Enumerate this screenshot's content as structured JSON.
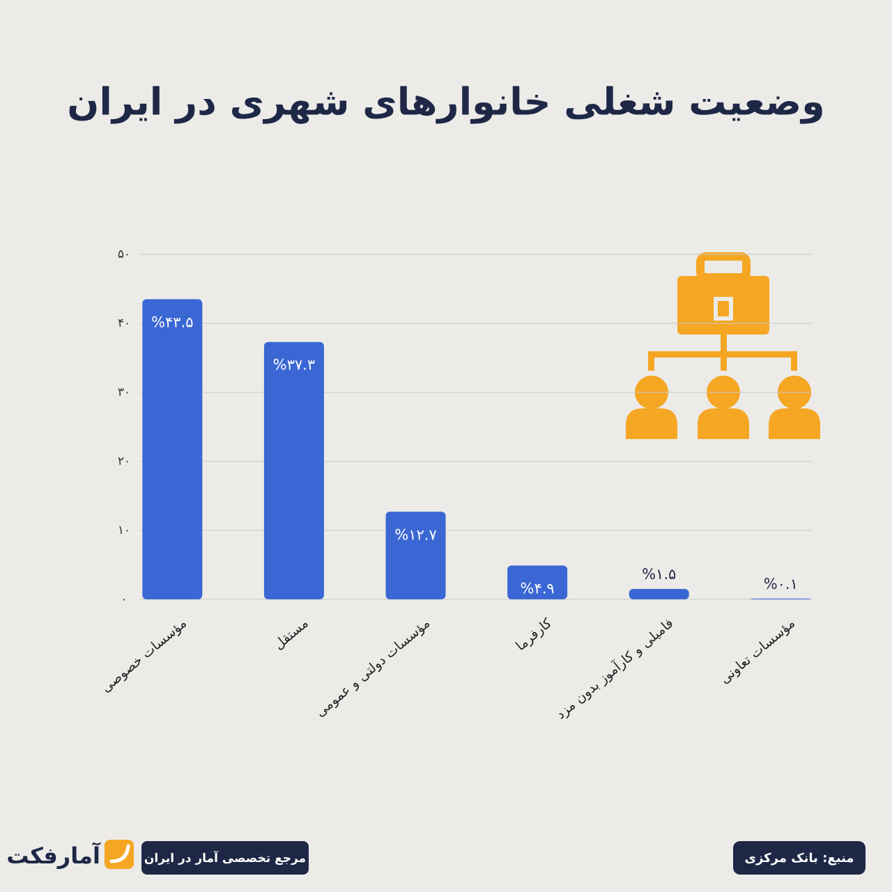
{
  "chart_data": {
    "type": "bar",
    "title": "وضعیت شغلی خانوارهای شهری در ایران",
    "categories": [
      "مؤسسات خصوصی",
      "مستقل",
      "مؤسسات دولتی و عمومی",
      "کارفرما",
      "فامیلی و کارآموز بدون مزد",
      "مؤسسات تعاونی"
    ],
    "values": [
      43.5,
      37.3,
      12.7,
      4.9,
      1.5,
      0.1
    ],
    "value_labels": [
      "%۴۳.۵",
      "%۳۷.۳",
      "%۱۲.۷",
      "%۴.۹",
      "%۱.۵",
      "%۰.۱"
    ],
    "color": "#3a67d4",
    "ylim": [
      0,
      50
    ],
    "yticks": [
      {
        "value": 0,
        "label": "۰"
      },
      {
        "value": 10,
        "label": "۱۰"
      },
      {
        "value": 20,
        "label": "۲۰"
      },
      {
        "value": 30,
        "label": "۳۰"
      },
      {
        "value": 40,
        "label": "۴۰"
      },
      {
        "value": 50,
        "label": "۵۰"
      }
    ],
    "grid": true
  },
  "footer": {
    "logo": "آمارفکت",
    "tagline": "مرجع تخصصی آمار در ایران",
    "source": "منبع: بانک مرکزی"
  }
}
